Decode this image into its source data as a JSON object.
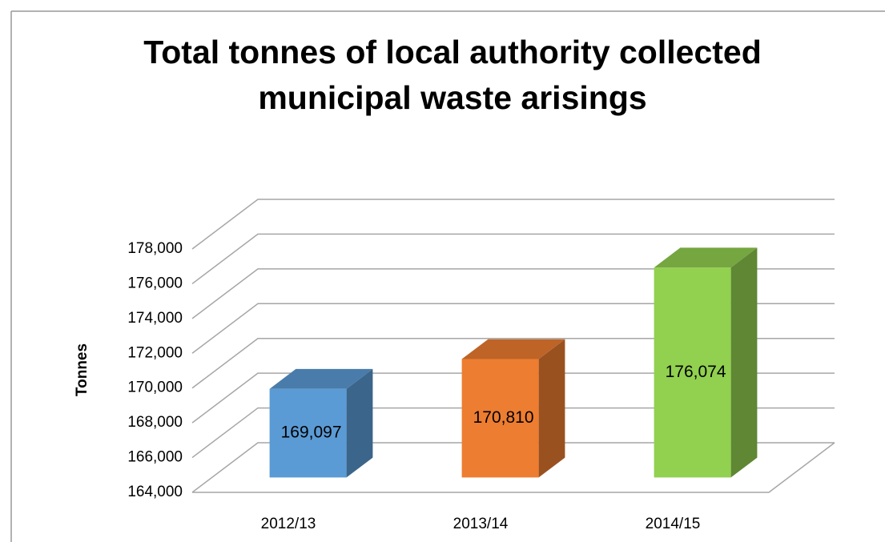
{
  "chart_data": {
    "type": "bar3d",
    "title": [
      "Total tonnes of local authority collected",
      "municipal waste arisings"
    ],
    "y_label": "Tonnes",
    "categories": [
      "2012/13",
      "2013/14",
      "2014/15"
    ],
    "values": [
      169097,
      170810,
      176074
    ],
    "value_labels": [
      "169,097",
      "170,810",
      "176,074"
    ],
    "colors": [
      "#5b9bd5",
      "#ed7d31",
      "#92d050"
    ],
    "ylim": [
      164000,
      178000
    ],
    "yticks": [
      {
        "value": 164000,
        "label": "164,000"
      },
      {
        "value": 166000,
        "label": "166,000"
      },
      {
        "value": 168000,
        "label": "168,000"
      },
      {
        "value": 170000,
        "label": "170,000"
      },
      {
        "value": 172000,
        "label": "172,000"
      },
      {
        "value": 174000,
        "label": "174,000"
      },
      {
        "value": 176000,
        "label": "176,000"
      },
      {
        "value": 178000,
        "label": "178,000"
      }
    ],
    "grid": true
  }
}
